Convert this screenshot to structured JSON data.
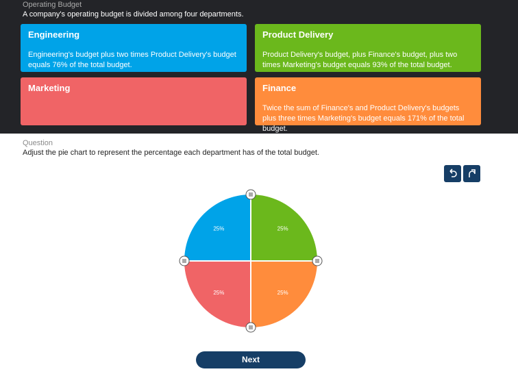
{
  "header": {
    "title": "Operating Budget",
    "subtitle": "A company's operating budget is divided among four departments."
  },
  "cards": [
    {
      "title": "Engineering",
      "text": "Engineering's budget plus two times Product Delivery's budget equals 76% of the total budget.",
      "color": "#00a3e8"
    },
    {
      "title": "Product Delivery",
      "text": "Product Delivery's budget, plus Finance's budget, plus two times Marketing's budget equals 93% of the total budget.",
      "color": "#6bb81c"
    },
    {
      "title": "Marketing",
      "text": "",
      "color": "#f06466"
    },
    {
      "title": "Finance",
      "text": "Twice the sum of Finance's and Product Delivery's budgets plus three times Marketing's budget equals 171% of the total budget.",
      "color": "#ff8c3c"
    }
  ],
  "question": {
    "label": "Question",
    "prompt": "Adjust the pie chart to represent the percentage each department has of the total budget."
  },
  "chart_data": {
    "type": "pie",
    "values": [
      25,
      25,
      25,
      25
    ],
    "value_labels": [
      "25%",
      "25%",
      "25%",
      "25%"
    ],
    "colors": [
      "#6bb81c",
      "#ff8c3c",
      "#f06466",
      "#00a3e8"
    ]
  },
  "next_button": "Next"
}
